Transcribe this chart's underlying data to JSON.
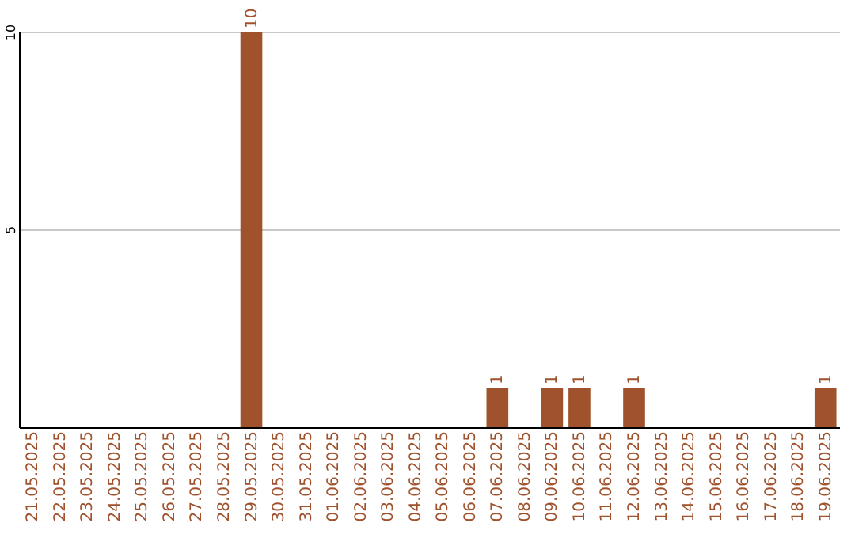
{
  "chart_data": {
    "type": "bar",
    "categories": [
      "21.05.2025",
      "22.05.2025",
      "23.05.2025",
      "24.05.2025",
      "25.05.2025",
      "26.05.2025",
      "27.05.2025",
      "28.05.2025",
      "29.05.2025",
      "30.05.2025",
      "31.05.2025",
      "01.06.2025",
      "02.06.2025",
      "03.06.2025",
      "04.06.2025",
      "05.06.2025",
      "06.06.2025",
      "07.06.2025",
      "08.06.2025",
      "09.06.2025",
      "10.06.2025",
      "11.06.2025",
      "12.06.2025",
      "13.06.2025",
      "14.06.2025",
      "15.06.2025",
      "16.06.2025",
      "17.06.2025",
      "18.06.2025",
      "19.06.2025"
    ],
    "values": [
      0,
      0,
      0,
      0,
      0,
      0,
      0,
      0,
      10,
      0,
      0,
      0,
      0,
      0,
      0,
      0,
      0,
      1,
      0,
      1,
      1,
      0,
      1,
      0,
      0,
      0,
      0,
      0,
      0,
      1
    ],
    "value_labels": [
      null,
      null,
      null,
      null,
      null,
      null,
      null,
      null,
      "10",
      null,
      null,
      null,
      null,
      null,
      null,
      null,
      null,
      "1",
      null,
      "1",
      "1",
      null,
      "1",
      null,
      null,
      null,
      null,
      null,
      null,
      "1"
    ],
    "color": "#a0522d",
    "ylim": [
      0,
      10
    ],
    "yticks": [
      5,
      10
    ],
    "grid": "y"
  }
}
